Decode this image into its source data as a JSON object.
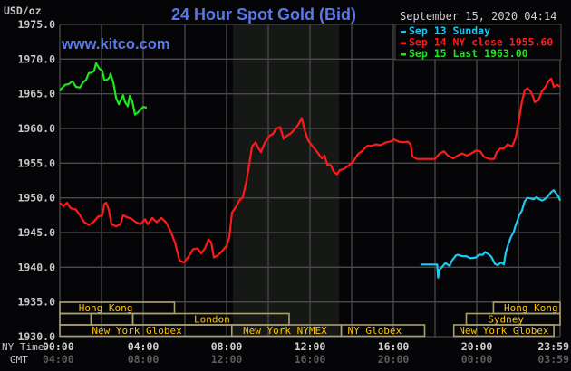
{
  "header": {
    "title": "24 Hour Spot Gold (Bid)",
    "site": "www.kitco.com",
    "unit_label": "USD/oz",
    "datetime": "September 15, 2020 04:14"
  },
  "axis": {
    "x_row1_label": "NY Time",
    "x_row2_label": "GMT",
    "ny_ticks": [
      {
        "hour": 0,
        "label": "00:00"
      },
      {
        "hour": 4,
        "label": "04:00"
      },
      {
        "hour": 8,
        "label": "08:00"
      },
      {
        "hour": 12,
        "label": "12:00"
      },
      {
        "hour": 16,
        "label": "16:00"
      },
      {
        "hour": 20,
        "label": "20:00"
      },
      {
        "hour": 24,
        "label": "23:59"
      }
    ],
    "gmt_ticks": [
      "04:00",
      "08:00",
      "12:00",
      "16:00",
      "20:00",
      "00:00",
      "03:59"
    ],
    "y_ticks": [
      "1975.0",
      "1970.0",
      "1965.0",
      "1960.0",
      "1955.0",
      "1950.0",
      "1945.0",
      "1940.0",
      "1935.0",
      "1930.0"
    ]
  },
  "legend": [
    {
      "label": "Sep 13 Sunday",
      "color": "#1ec8f0"
    },
    {
      "label": "Sep 14 NY close 1955.60",
      "color": "#ff1a1a"
    },
    {
      "label": "Sep 15 Last 1963.00",
      "color": "#1ee61e"
    }
  ],
  "sessions": [
    {
      "label": "Hong Kong",
      "row": 0,
      "start": 0,
      "end": 5.5,
      "text_at": 2.2
    },
    {
      "label": "Hong Kong",
      "row": 0,
      "start": 20.8,
      "end": 24,
      "text_at": 22.6
    },
    {
      "label": "",
      "row": 1,
      "start": 0,
      "end": 1.5,
      "text_at": 0
    },
    {
      "label": "London",
      "row": 1,
      "start": 1.5,
      "end": 3.5,
      "text_at": 0
    },
    {
      "label": "London",
      "row": 1,
      "start": 3.5,
      "end": 11.0,
      "text_at": 7.3
    },
    {
      "label": "Sydney",
      "row": 1,
      "start": 19.5,
      "end": 24,
      "text_at": 21.4
    },
    {
      "label": "New York Globex",
      "row": 2,
      "start": 0,
      "end": 8.25,
      "text_at": 3.7
    },
    {
      "label": "New York NYMEX",
      "row": 2,
      "start": 8.25,
      "end": 13.5,
      "text_at": 10.8
    },
    {
      "label": "NY Globex",
      "row": 2,
      "start": 13.5,
      "end": 17.5,
      "text_at": 15.1
    },
    {
      "label": "New York Globex",
      "row": 2,
      "start": 18.9,
      "end": 23.7,
      "text_at": 21.3
    }
  ],
  "colors": {
    "background": "#050407",
    "grid": "#4a4a4a",
    "nymex_shade": "#161816",
    "session_border": "#a8a070",
    "session_text": "#ffc400",
    "title": "#5a78e8"
  },
  "chart_data": {
    "type": "line",
    "title": "24 Hour Spot Gold (Bid)",
    "xlabel": "NY Time / GMT",
    "ylabel": "USD/oz",
    "ylim": [
      1930,
      1975
    ],
    "xlim": [
      0,
      24
    ],
    "grid": true,
    "legend_position": "top-right",
    "shaded_region": {
      "label": "New York NYMEX",
      "start_hour": 8.3,
      "end_hour": 13.4
    },
    "series": [
      {
        "name": "Sep 13 Sunday",
        "color": "#1ec8f0",
        "points": [
          [
            17.3,
            1940.4
          ],
          [
            18.0,
            1940.4
          ],
          [
            18.1,
            1940.4
          ],
          [
            18.15,
            1938.5
          ],
          [
            18.2,
            1939.6
          ],
          [
            18.35,
            1940.1
          ],
          [
            18.5,
            1940.6
          ],
          [
            18.7,
            1940.2
          ],
          [
            18.8,
            1940.9
          ],
          [
            19.0,
            1941.7
          ],
          [
            19.1,
            1941.8
          ],
          [
            19.3,
            1941.6
          ],
          [
            19.5,
            1941.6
          ],
          [
            19.7,
            1941.3
          ],
          [
            19.96,
            1941.4
          ],
          [
            20.1,
            1941.8
          ],
          [
            20.3,
            1941.8
          ],
          [
            20.4,
            1942.2
          ],
          [
            20.6,
            1941.8
          ],
          [
            20.7,
            1941.5
          ],
          [
            20.87,
            1940.5
          ],
          [
            21.0,
            1940.3
          ],
          [
            21.17,
            1940.7
          ],
          [
            21.3,
            1940.4
          ],
          [
            21.39,
            1942.1
          ],
          [
            21.52,
            1943.4
          ],
          [
            21.65,
            1944.4
          ],
          [
            21.78,
            1945.1
          ],
          [
            21.83,
            1945.7
          ],
          [
            22.04,
            1947.5
          ],
          [
            22.17,
            1948.2
          ],
          [
            22.3,
            1949.5
          ],
          [
            22.43,
            1950.0
          ],
          [
            22.6,
            1949.9
          ],
          [
            22.73,
            1949.8
          ],
          [
            22.87,
            1950.1
          ],
          [
            23.0,
            1949.8
          ],
          [
            23.13,
            1949.6
          ],
          [
            23.26,
            1949.8
          ],
          [
            23.43,
            1950.3
          ],
          [
            23.56,
            1950.8
          ],
          [
            23.69,
            1951.1
          ],
          [
            23.82,
            1950.6
          ],
          [
            23.95,
            1950.0
          ],
          [
            24.0,
            1949.6
          ]
        ]
      },
      {
        "name": "Sep 14 NY close 1955.60",
        "color": "#ff1a1a",
        "points": [
          [
            0.0,
            1949.3
          ],
          [
            0.17,
            1948.8
          ],
          [
            0.35,
            1949.3
          ],
          [
            0.52,
            1948.5
          ],
          [
            0.78,
            1948.3
          ],
          [
            0.96,
            1947.5
          ],
          [
            1.17,
            1946.5
          ],
          [
            1.39,
            1946.1
          ],
          [
            1.61,
            1946.5
          ],
          [
            1.83,
            1947.3
          ],
          [
            2.04,
            1947.5
          ],
          [
            2.13,
            1949.1
          ],
          [
            2.22,
            1949.3
          ],
          [
            2.35,
            1948.3
          ],
          [
            2.48,
            1946.2
          ],
          [
            2.7,
            1945.9
          ],
          [
            2.91,
            1946.2
          ],
          [
            3.04,
            1947.5
          ],
          [
            3.22,
            1947.2
          ],
          [
            3.43,
            1947.0
          ],
          [
            3.65,
            1946.5
          ],
          [
            3.87,
            1946.2
          ],
          [
            4.09,
            1946.9
          ],
          [
            4.22,
            1946.2
          ],
          [
            4.43,
            1947.1
          ],
          [
            4.65,
            1946.5
          ],
          [
            4.87,
            1947.1
          ],
          [
            5.09,
            1946.5
          ],
          [
            5.3,
            1945.3
          ],
          [
            5.52,
            1943.6
          ],
          [
            5.74,
            1941.0
          ],
          [
            5.96,
            1940.7
          ],
          [
            6.17,
            1941.5
          ],
          [
            6.39,
            1942.6
          ],
          [
            6.61,
            1942.7
          ],
          [
            6.78,
            1942.0
          ],
          [
            6.96,
            1942.7
          ],
          [
            7.13,
            1944.0
          ],
          [
            7.26,
            1943.6
          ],
          [
            7.39,
            1941.4
          ],
          [
            7.57,
            1941.7
          ],
          [
            7.78,
            1942.3
          ],
          [
            8.0,
            1943.1
          ],
          [
            8.13,
            1944.3
          ],
          [
            8.26,
            1947.9
          ],
          [
            8.43,
            1948.6
          ],
          [
            8.61,
            1949.6
          ],
          [
            8.78,
            1950.1
          ],
          [
            8.96,
            1952.5
          ],
          [
            9.13,
            1955.7
          ],
          [
            9.22,
            1957.4
          ],
          [
            9.39,
            1958.0
          ],
          [
            9.52,
            1957.2
          ],
          [
            9.65,
            1956.6
          ],
          [
            9.83,
            1957.9
          ],
          [
            10.04,
            1958.9
          ],
          [
            10.22,
            1959.2
          ],
          [
            10.39,
            1960.0
          ],
          [
            10.57,
            1960.2
          ],
          [
            10.74,
            1958.5
          ],
          [
            10.91,
            1959.0
          ],
          [
            11.09,
            1959.3
          ],
          [
            11.26,
            1959.9
          ],
          [
            11.43,
            1960.5
          ],
          [
            11.61,
            1961.5
          ],
          [
            11.74,
            1959.8
          ],
          [
            11.91,
            1958.3
          ],
          [
            12.13,
            1957.4
          ],
          [
            12.35,
            1956.6
          ],
          [
            12.57,
            1955.7
          ],
          [
            12.7,
            1956.1
          ],
          [
            12.83,
            1954.8
          ],
          [
            13.0,
            1954.7
          ],
          [
            13.13,
            1953.8
          ],
          [
            13.3,
            1953.4
          ],
          [
            13.43,
            1954.0
          ],
          [
            13.65,
            1954.2
          ],
          [
            13.87,
            1954.7
          ],
          [
            14.09,
            1955.3
          ],
          [
            14.3,
            1956.3
          ],
          [
            14.52,
            1956.8
          ],
          [
            14.74,
            1957.5
          ],
          [
            14.96,
            1957.5
          ],
          [
            15.17,
            1957.7
          ],
          [
            15.39,
            1957.6
          ],
          [
            15.65,
            1958.0
          ],
          [
            15.83,
            1958.1
          ],
          [
            16.04,
            1958.4
          ],
          [
            16.26,
            1958.1
          ],
          [
            16.48,
            1958.0
          ],
          [
            16.7,
            1958.1
          ],
          [
            16.83,
            1957.7
          ],
          [
            16.91,
            1956.0
          ],
          [
            17.13,
            1955.6
          ],
          [
            17.57,
            1955.6
          ],
          [
            18.0,
            1955.6
          ],
          [
            18.22,
            1956.4
          ],
          [
            18.43,
            1956.7
          ],
          [
            18.61,
            1956.1
          ],
          [
            18.87,
            1955.7
          ],
          [
            19.09,
            1956.1
          ],
          [
            19.3,
            1956.4
          ],
          [
            19.52,
            1956.1
          ],
          [
            19.74,
            1956.4
          ],
          [
            19.96,
            1956.8
          ],
          [
            20.17,
            1956.7
          ],
          [
            20.35,
            1955.9
          ],
          [
            20.61,
            1955.6
          ],
          [
            20.83,
            1955.6
          ],
          [
            20.96,
            1956.6
          ],
          [
            21.13,
            1957.1
          ],
          [
            21.3,
            1957.1
          ],
          [
            21.48,
            1957.7
          ],
          [
            21.7,
            1957.4
          ],
          [
            21.87,
            1958.7
          ],
          [
            22.0,
            1960.8
          ],
          [
            22.17,
            1963.9
          ],
          [
            22.3,
            1965.5
          ],
          [
            22.43,
            1965.8
          ],
          [
            22.57,
            1965.4
          ],
          [
            22.7,
            1964.6
          ],
          [
            22.78,
            1963.8
          ],
          [
            22.96,
            1964.1
          ],
          [
            23.13,
            1965.4
          ],
          [
            23.3,
            1966.0
          ],
          [
            23.43,
            1966.8
          ],
          [
            23.57,
            1967.2
          ],
          [
            23.7,
            1966.0
          ],
          [
            23.87,
            1966.3
          ],
          [
            24.0,
            1966.0
          ]
        ]
      },
      {
        "name": "Sep 15 Last 1963.00",
        "color": "#1ee61e",
        "points": [
          [
            0.0,
            1965.4
          ],
          [
            0.09,
            1965.8
          ],
          [
            0.26,
            1966.3
          ],
          [
            0.43,
            1966.4
          ],
          [
            0.61,
            1966.8
          ],
          [
            0.78,
            1966.0
          ],
          [
            0.96,
            1965.9
          ],
          [
            1.13,
            1966.7
          ],
          [
            1.26,
            1967.0
          ],
          [
            1.39,
            1968.0
          ],
          [
            1.48,
            1968.0
          ],
          [
            1.65,
            1968.3
          ],
          [
            1.74,
            1969.4
          ],
          [
            1.91,
            1968.6
          ],
          [
            2.04,
            1968.3
          ],
          [
            2.13,
            1967.0
          ],
          [
            2.26,
            1967.0
          ],
          [
            2.39,
            1967.4
          ],
          [
            2.43,
            1967.9
          ],
          [
            2.57,
            1966.6
          ],
          [
            2.7,
            1964.4
          ],
          [
            2.83,
            1963.5
          ],
          [
            2.96,
            1964.3
          ],
          [
            3.04,
            1964.8
          ],
          [
            3.13,
            1963.8
          ],
          [
            3.26,
            1963.2
          ],
          [
            3.35,
            1964.7
          ],
          [
            3.48,
            1963.9
          ],
          [
            3.61,
            1962.0
          ],
          [
            3.74,
            1962.3
          ],
          [
            3.87,
            1962.7
          ],
          [
            4.0,
            1963.1
          ],
          [
            4.17,
            1963.0
          ]
        ]
      }
    ]
  }
}
